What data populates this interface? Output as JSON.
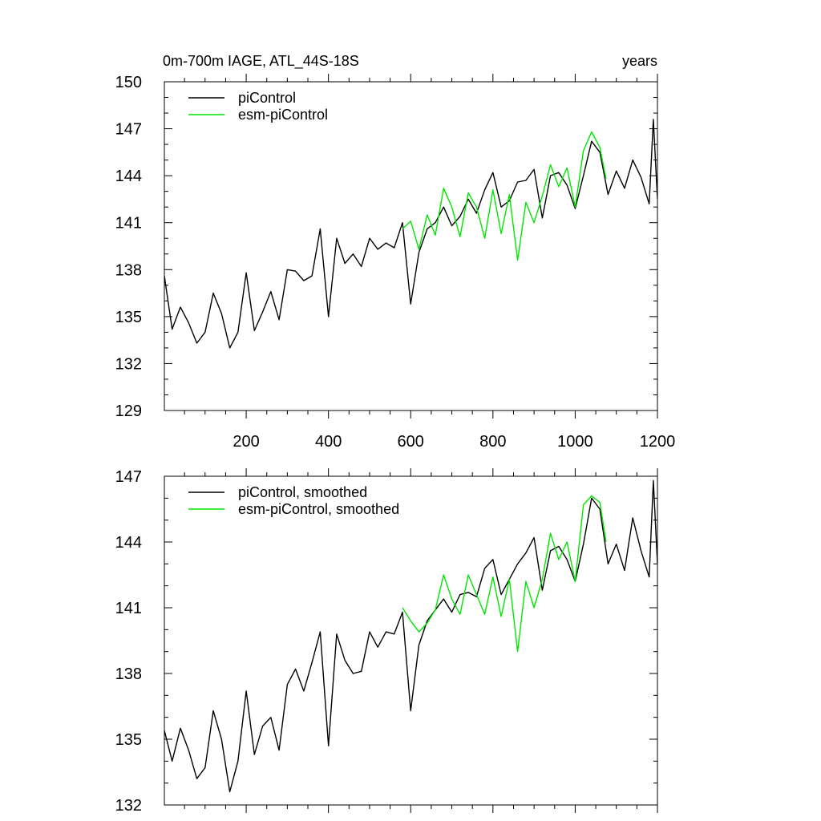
{
  "title_left": "0m-700m IAGE, ATL_44S-18S",
  "title_right": "years",
  "chart_data": [
    {
      "type": "line",
      "xlim": [
        1,
        1200
      ],
      "ylim": [
        129,
        150
      ],
      "yticks": [
        129,
        132,
        135,
        138,
        141,
        144,
        147,
        150
      ],
      "xticks": [
        200,
        400,
        600,
        800,
        1000,
        1200
      ],
      "xlabel": "",
      "ylabel": "",
      "legend": [
        "piControl",
        "esm-piControl"
      ],
      "series": [
        {
          "name": "piControl",
          "color": "#000000",
          "x": [
            1,
            20,
            40,
            60,
            80,
            100,
            120,
            140,
            160,
            180,
            200,
            220,
            240,
            260,
            280,
            300,
            320,
            340,
            360,
            380,
            400,
            420,
            440,
            460,
            480,
            500,
            520,
            540,
            560,
            580,
            600,
            620,
            640,
            660,
            680,
            700,
            720,
            740,
            760,
            780,
            800,
            820,
            840,
            860,
            880,
            900,
            920,
            940,
            960,
            980,
            1000,
            1020,
            1040,
            1060,
            1080,
            1100,
            1120,
            1140,
            1160,
            1180,
            1190,
            1200
          ],
          "values": [
            137.6,
            134.2,
            135.6,
            134.6,
            133.3,
            134.0,
            136.5,
            135.2,
            133.0,
            134.0,
            137.8,
            134.1,
            135.3,
            136.6,
            134.8,
            138.0,
            137.9,
            137.3,
            137.6,
            140.6,
            135.0,
            140.0,
            138.4,
            139.0,
            138.2,
            140.0,
            139.3,
            139.7,
            139.4,
            141.0,
            135.8,
            139.1,
            140.6,
            141.0,
            142.0,
            140.8,
            141.4,
            142.5,
            141.6,
            143.1,
            144.2,
            142.0,
            142.4,
            143.6,
            143.7,
            144.4,
            141.3,
            144.0,
            144.2,
            143.4,
            141.9,
            144.0,
            146.2,
            145.5,
            142.8,
            144.3,
            143.2,
            145.0,
            143.9,
            142.2,
            147.6,
            142.5
          ]
        },
        {
          "name": "esm-piControl",
          "color": "#00e600",
          "x": [
            580,
            600,
            620,
            640,
            660,
            680,
            700,
            720,
            740,
            760,
            780,
            800,
            820,
            840,
            860,
            880,
            900,
            920,
            940,
            960,
            980,
            1000,
            1020,
            1040,
            1060,
            1075
          ],
          "values": [
            140.6,
            141.1,
            139.3,
            141.5,
            140.2,
            143.2,
            142.0,
            140.1,
            142.9,
            142.0,
            140.0,
            143.1,
            140.3,
            142.8,
            138.6,
            142.3,
            141.0,
            142.7,
            144.7,
            143.3,
            144.5,
            142.0,
            145.6,
            146.8,
            145.8,
            143.8
          ]
        }
      ]
    },
    {
      "type": "line",
      "xlim": [
        1,
        1200
      ],
      "ylim": [
        132,
        147
      ],
      "yticks": [
        132,
        135,
        138,
        141,
        144,
        147
      ],
      "xlabel": "",
      "ylabel": "",
      "legend": [
        "piControl, smoothed",
        "esm-piControl, smoothed"
      ],
      "series": [
        {
          "name": "piControl, smoothed",
          "color": "#000000",
          "x": [
            1,
            20,
            40,
            60,
            80,
            100,
            120,
            140,
            160,
            180,
            200,
            220,
            240,
            260,
            280,
            300,
            320,
            340,
            360,
            380,
            400,
            420,
            440,
            460,
            480,
            500,
            520,
            540,
            560,
            580,
            600,
            620,
            640,
            660,
            680,
            700,
            720,
            740,
            760,
            780,
            800,
            820,
            840,
            860,
            880,
            900,
            920,
            940,
            960,
            980,
            1000,
            1020,
            1040,
            1060,
            1080,
            1100,
            1120,
            1140,
            1160,
            1180,
            1190,
            1200
          ],
          "values": [
            135.4,
            134.0,
            135.5,
            134.5,
            133.2,
            133.7,
            136.3,
            135.0,
            132.6,
            134.0,
            137.2,
            134.3,
            135.6,
            136.0,
            134.5,
            137.5,
            138.2,
            137.2,
            138.5,
            139.9,
            134.7,
            139.8,
            138.6,
            138.0,
            138.1,
            139.9,
            139.2,
            139.9,
            139.8,
            140.8,
            136.3,
            139.3,
            140.4,
            140.9,
            141.4,
            140.8,
            141.6,
            141.7,
            141.5,
            142.8,
            143.2,
            141.6,
            142.3,
            143.0,
            143.5,
            144.2,
            141.8,
            143.6,
            143.8,
            143.2,
            142.2,
            143.9,
            146.0,
            145.5,
            143.0,
            143.9,
            142.7,
            145.1,
            143.6,
            142.4,
            146.8,
            143.0
          ]
        },
        {
          "name": "esm-piControl, smoothed",
          "color": "#00e600",
          "x": [
            580,
            600,
            620,
            640,
            660,
            680,
            700,
            720,
            740,
            760,
            780,
            800,
            820,
            840,
            860,
            880,
            900,
            920,
            940,
            960,
            980,
            1000,
            1020,
            1040,
            1060,
            1075
          ],
          "values": [
            141.0,
            140.4,
            139.9,
            140.3,
            140.9,
            142.5,
            141.4,
            140.7,
            142.5,
            141.6,
            140.7,
            142.4,
            140.6,
            142.3,
            139.0,
            142.2,
            141.0,
            142.3,
            144.4,
            143.2,
            144.0,
            142.2,
            145.7,
            146.1,
            145.8,
            144.0
          ]
        }
      ]
    }
  ]
}
